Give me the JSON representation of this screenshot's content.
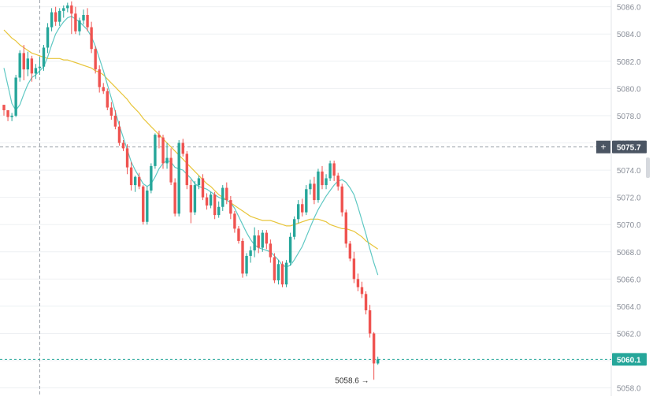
{
  "chart_data": {
    "type": "candlestick",
    "ylim": [
      5057.4,
      5086.5
    ],
    "yticks": [
      "5058.0",
      "5060.0",
      "5062.0",
      "5064.0",
      "5066.0",
      "5068.0",
      "5070.0",
      "5072.0",
      "5074.0",
      "5076.0",
      "5078.0",
      "5080.0",
      "5082.0",
      "5084.0",
      "5086.0"
    ],
    "crosshair": {
      "price": 5075.7,
      "label": "5075.7",
      "plus_symbol": "+",
      "bar_index": 9
    },
    "last_price": {
      "price": 5060.1,
      "label": "5060.1"
    },
    "low_marker": {
      "price": 5058.6,
      "label": "5058.6",
      "arrow": "→",
      "bar_index": 93
    },
    "candles": [
      [
        5078.8,
        5078.8,
        5078.0,
        5078.4
      ],
      [
        5078.4,
        5078.4,
        5077.6,
        5077.9
      ],
      [
        5077.9,
        5078.2,
        5077.6,
        5078.0
      ],
      [
        5078.0,
        5081.0,
        5077.9,
        5080.8
      ],
      [
        5080.8,
        5082.8,
        5080.5,
        5082.6
      ],
      [
        5082.6,
        5083.2,
        5080.6,
        5081.4
      ],
      [
        5081.4,
        5082.7,
        5080.9,
        5082.2
      ],
      [
        5082.2,
        5082.4,
        5080.5,
        5081.1
      ],
      [
        5081.1,
        5081.8,
        5080.7,
        5081.5
      ],
      [
        5081.5,
        5082.3,
        5081.0,
        5081.6
      ],
      [
        5081.6,
        5083.2,
        5081.3,
        5083.0
      ],
      [
        5083.0,
        5084.8,
        5082.6,
        5084.5
      ],
      [
        5084.5,
        5085.9,
        5084.2,
        5085.6
      ],
      [
        5085.6,
        5086.0,
        5084.6,
        5084.9
      ],
      [
        5084.9,
        5085.9,
        5084.6,
        5085.7
      ],
      [
        5085.7,
        5086.1,
        5085.2,
        5085.9
      ],
      [
        5085.9,
        5086.3,
        5085.6,
        5086.1
      ],
      [
        5086.1,
        5086.4,
        5084.0,
        5085.5
      ],
      [
        5085.5,
        5086.0,
        5084.0,
        5084.2
      ],
      [
        5084.2,
        5085.2,
        5083.9,
        5085.0
      ],
      [
        5085.0,
        5085.8,
        5084.7,
        5085.4
      ],
      [
        5085.4,
        5085.9,
        5084.2,
        5084.5
      ],
      [
        5084.5,
        5084.9,
        5082.6,
        5082.9
      ],
      [
        5082.9,
        5083.1,
        5081.1,
        5081.4
      ],
      [
        5081.4,
        5081.7,
        5079.7,
        5080.1
      ],
      [
        5080.1,
        5080.4,
        5079.6,
        5079.8
      ],
      [
        5079.8,
        5080.0,
        5078.4,
        5078.6
      ],
      [
        5078.6,
        5079.0,
        5077.7,
        5078.0
      ],
      [
        5078.0,
        5078.4,
        5077.0,
        5077.2
      ],
      [
        5077.2,
        5077.6,
        5075.8,
        5076.0
      ],
      [
        5076.0,
        5076.2,
        5075.4,
        5075.6
      ],
      [
        5075.6,
        5075.9,
        5073.7,
        5074.2
      ],
      [
        5074.2,
        5074.6,
        5072.5,
        5072.9
      ],
      [
        5072.9,
        5073.6,
        5072.4,
        5073.5
      ],
      [
        5073.5,
        5073.8,
        5072.6,
        5072.8
      ],
      [
        5072.8,
        5072.9,
        5070.0,
        5070.2
      ],
      [
        5070.2,
        5072.8,
        5070.0,
        5072.5
      ],
      [
        5072.5,
        5074.5,
        5072.3,
        5074.3
      ],
      [
        5074.3,
        5076.7,
        5074.1,
        5076.6
      ],
      [
        5076.6,
        5076.9,
        5075.6,
        5076.4
      ],
      [
        5076.4,
        5076.6,
        5074.1,
        5074.5
      ],
      [
        5074.5,
        5076.0,
        5074.1,
        5074.9
      ],
      [
        5074.9,
        5075.6,
        5072.9,
        5073.1
      ],
      [
        5073.1,
        5073.4,
        5070.6,
        5070.8
      ],
      [
        5070.8,
        5076.2,
        5070.6,
        5076.0
      ],
      [
        5076.0,
        5076.3,
        5075.0,
        5075.2
      ],
      [
        5075.2,
        5075.4,
        5072.6,
        5072.9
      ],
      [
        5072.9,
        5073.3,
        5070.1,
        5070.9
      ],
      [
        5070.9,
        5073.2,
        5070.7,
        5072.9
      ],
      [
        5072.9,
        5073.6,
        5072.6,
        5073.4
      ],
      [
        5073.4,
        5073.7,
        5071.8,
        5072.0
      ],
      [
        5072.0,
        5072.3,
        5071.1,
        5071.4
      ],
      [
        5071.4,
        5072.4,
        5071.2,
        5072.2
      ],
      [
        5072.2,
        5072.4,
        5070.4,
        5070.7
      ],
      [
        5070.7,
        5071.7,
        5070.5,
        5071.3
      ],
      [
        5071.3,
        5072.9,
        5071.0,
        5072.7
      ],
      [
        5072.7,
        5073.1,
        5071.5,
        5071.8
      ],
      [
        5071.8,
        5072.1,
        5070.4,
        5070.8
      ],
      [
        5070.8,
        5071.0,
        5069.4,
        5069.7
      ],
      [
        5069.7,
        5069.9,
        5068.6,
        5068.8
      ],
      [
        5068.8,
        5069.0,
        5066.1,
        5066.4
      ],
      [
        5066.4,
        5067.9,
        5066.2,
        5067.7
      ],
      [
        5067.7,
        5068.4,
        5067.2,
        5068.1
      ],
      [
        5068.1,
        5069.8,
        5067.6,
        5069.2
      ],
      [
        5069.2,
        5069.6,
        5067.9,
        5068.3
      ],
      [
        5068.3,
        5069.6,
        5068.0,
        5069.4
      ],
      [
        5069.4,
        5069.6,
        5068.2,
        5068.6
      ],
      [
        5068.6,
        5068.9,
        5067.2,
        5067.6
      ],
      [
        5067.6,
        5067.9,
        5065.7,
        5065.9
      ],
      [
        5065.9,
        5067.4,
        5065.6,
        5067.1
      ],
      [
        5067.1,
        5067.3,
        5065.4,
        5065.6
      ],
      [
        5065.6,
        5067.4,
        5065.4,
        5067.2
      ],
      [
        5067.2,
        5069.4,
        5067.0,
        5069.1
      ],
      [
        5069.1,
        5070.6,
        5068.9,
        5070.4
      ],
      [
        5070.4,
        5071.8,
        5070.1,
        5071.5
      ],
      [
        5071.5,
        5071.9,
        5070.6,
        5070.9
      ],
      [
        5070.9,
        5072.9,
        5070.7,
        5072.6
      ],
      [
        5072.6,
        5073.3,
        5072.2,
        5073.0
      ],
      [
        5073.0,
        5073.5,
        5071.5,
        5071.8
      ],
      [
        5071.8,
        5074.1,
        5071.6,
        5073.9
      ],
      [
        5073.9,
        5074.3,
        5072.6,
        5072.9
      ],
      [
        5072.9,
        5073.7,
        5072.6,
        5073.4
      ],
      [
        5073.4,
        5074.7,
        5073.2,
        5074.5
      ],
      [
        5074.5,
        5074.7,
        5073.2,
        5073.6
      ],
      [
        5073.6,
        5073.8,
        5072.5,
        5072.8
      ],
      [
        5072.8,
        5073.0,
        5070.6,
        5070.9
      ],
      [
        5070.9,
        5071.1,
        5068.3,
        5068.6
      ],
      [
        5068.6,
        5068.8,
        5067.3,
        5067.5
      ],
      [
        5067.5,
        5068.0,
        5065.7,
        5066.0
      ],
      [
        5066.0,
        5066.4,
        5065.1,
        5065.4
      ],
      [
        5065.4,
        5065.8,
        5064.6,
        5064.9
      ],
      [
        5064.9,
        5065.1,
        5063.4,
        5063.7
      ],
      [
        5063.7,
        5064.1,
        5061.7,
        5062.0
      ],
      [
        5062.0,
        5062.1,
        5058.6,
        5059.8
      ],
      [
        5059.8,
        5060.3,
        5059.7,
        5060.1
      ]
    ],
    "ma_fast": {
      "color": "#5ec8c3",
      "values": [
        5081.5,
        5080.2,
        5078.9,
        5078.4,
        5078.8,
        5079.6,
        5080.3,
        5080.8,
        5081.0,
        5081.3,
        5081.6,
        5082.3,
        5083.2,
        5084.0,
        5084.5,
        5084.9,
        5085.2,
        5085.3,
        5085.1,
        5084.9,
        5084.6,
        5084.3,
        5083.8,
        5083.1,
        5082.2,
        5081.3,
        5080.3,
        5079.3,
        5078.3,
        5077.3,
        5076.4,
        5075.5,
        5074.6,
        5074.0,
        5073.5,
        5073.0,
        5072.8,
        5073.0,
        5073.5,
        5074.1,
        5074.5,
        5074.7,
        5074.6,
        5074.2,
        5074.1,
        5074.0,
        5073.7,
        5073.4,
        5073.0,
        5072.8,
        5072.7,
        5072.6,
        5072.4,
        5072.2,
        5072.0,
        5071.9,
        5071.8,
        5071.6,
        5071.2,
        5070.6,
        5070.0,
        5069.4,
        5068.9,
        5068.5,
        5068.3,
        5068.2,
        5068.1,
        5068.0,
        5067.7,
        5067.4,
        5067.0,
        5066.9,
        5067.0,
        5067.4,
        5067.9,
        5068.4,
        5069.1,
        5069.8,
        5070.5,
        5071.1,
        5071.6,
        5072.1,
        5072.5,
        5072.9,
        5073.2,
        5073.3,
        5073.1,
        5072.7,
        5072.2,
        5071.3,
        5070.3,
        5069.3,
        5068.2,
        5067.2,
        5066.3
      ]
    },
    "ma_slow": {
      "color": "#e8c53a",
      "values": [
        5084.3,
        5084.0,
        5083.7,
        5083.5,
        5083.2,
        5083.0,
        5082.8,
        5082.6,
        5082.5,
        5082.4,
        5082.3,
        5082.2,
        5082.2,
        5082.2,
        5082.2,
        5082.1,
        5082.1,
        5082.0,
        5081.9,
        5081.8,
        5081.7,
        5081.6,
        5081.5,
        5081.3,
        5081.2,
        5081.0,
        5080.7,
        5080.4,
        5080.1,
        5079.8,
        5079.5,
        5079.2,
        5078.8,
        5078.5,
        5078.2,
        5077.8,
        5077.5,
        5077.2,
        5076.9,
        5076.6,
        5076.3,
        5076.0,
        5075.7,
        5075.4,
        5075.1,
        5074.8,
        5074.5,
        5074.2,
        5073.9,
        5073.6,
        5073.3,
        5073.0,
        5072.8,
        5072.5,
        5072.2,
        5072.0,
        5071.8,
        5071.6,
        5071.4,
        5071.2,
        5071.0,
        5070.8,
        5070.6,
        5070.5,
        5070.4,
        5070.3,
        5070.3,
        5070.3,
        5070.2,
        5070.1,
        5070.0,
        5069.9,
        5069.9,
        5070.0,
        5070.1,
        5070.2,
        5070.3,
        5070.4,
        5070.4,
        5070.4,
        5070.3,
        5070.2,
        5070.0,
        5069.9,
        5069.8,
        5069.7,
        5069.7,
        5069.6,
        5069.5,
        5069.3,
        5069.1,
        5068.8,
        5068.6,
        5068.4,
        5068.2
      ]
    },
    "colors": {
      "up": "#26a69a",
      "down": "#ef5350",
      "grid": "#eef0f3",
      "axis_text": "#8a8f99",
      "crosshair": "#9aa0a8",
      "label_bg": "#4b5563",
      "last_price": "#26a69a"
    }
  }
}
